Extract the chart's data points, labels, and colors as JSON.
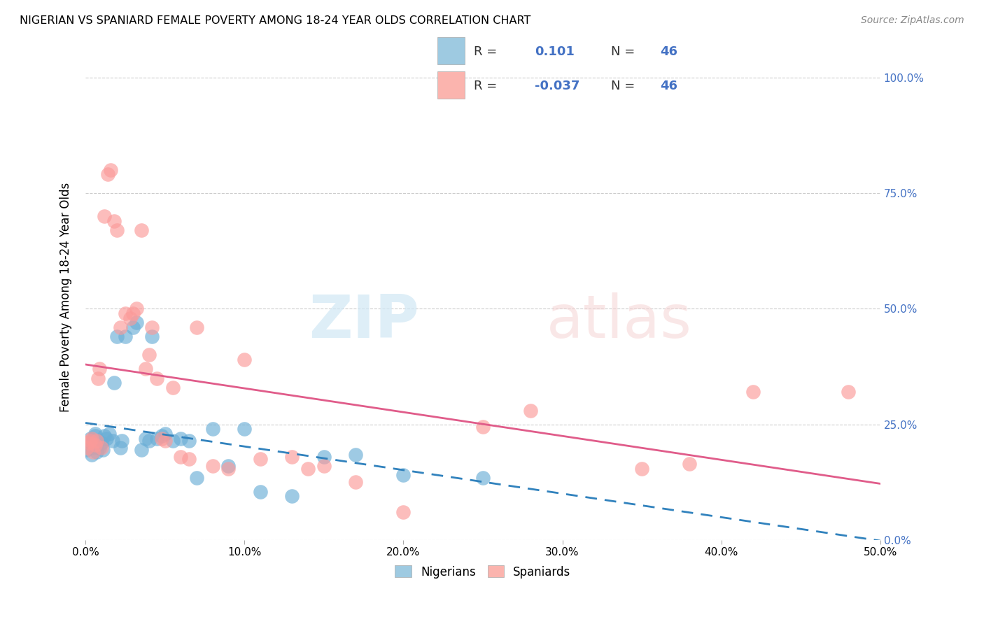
{
  "title": "NIGERIAN VS SPANIARD FEMALE POVERTY AMONG 18-24 YEAR OLDS CORRELATION CHART",
  "source": "Source: ZipAtlas.com",
  "ylabel": "Female Poverty Among 18-24 Year Olds",
  "xlim": [
    0.0,
    0.5
  ],
  "ylim": [
    0.0,
    1.05
  ],
  "xticks": [
    0.0,
    0.1,
    0.2,
    0.3,
    0.4,
    0.5
  ],
  "yticks": [
    0.0,
    0.25,
    0.5,
    0.75,
    1.0
  ],
  "ytick_labels_right": [
    "0.0%",
    "25.0%",
    "50.0%",
    "75.0%",
    "100.0%"
  ],
  "xtick_labels": [
    "0.0%",
    "10.0%",
    "20.0%",
    "30.0%",
    "40.0%",
    "50.0%"
  ],
  "nigerian_color": "#6baed6",
  "spaniard_color": "#fb9a99",
  "nigerian_label": "Nigerians",
  "spaniard_label": "Spaniards",
  "nigerian_R": "0.101",
  "nigerian_N": "46",
  "spaniard_R": "-0.037",
  "spaniard_N": "46",
  "watermark_zip": "ZIP",
  "watermark_atlas": "atlas",
  "nigerian_x": [
    0.001,
    0.002,
    0.003,
    0.003,
    0.004,
    0.005,
    0.005,
    0.006,
    0.006,
    0.007,
    0.007,
    0.008,
    0.009,
    0.01,
    0.011,
    0.012,
    0.013,
    0.015,
    0.017,
    0.018,
    0.02,
    0.022,
    0.023,
    0.025,
    0.03,
    0.032,
    0.035,
    0.038,
    0.04,
    0.042,
    0.045,
    0.048,
    0.05,
    0.055,
    0.06,
    0.065,
    0.07,
    0.08,
    0.09,
    0.1,
    0.11,
    0.13,
    0.15,
    0.17,
    0.2,
    0.25
  ],
  "nigerian_y": [
    0.195,
    0.21,
    0.2,
    0.22,
    0.185,
    0.2,
    0.215,
    0.225,
    0.23,
    0.19,
    0.205,
    0.215,
    0.2,
    0.21,
    0.195,
    0.225,
    0.22,
    0.23,
    0.215,
    0.34,
    0.44,
    0.2,
    0.215,
    0.44,
    0.46,
    0.47,
    0.195,
    0.22,
    0.215,
    0.44,
    0.22,
    0.225,
    0.23,
    0.215,
    0.22,
    0.215,
    0.135,
    0.24,
    0.16,
    0.24,
    0.105,
    0.095,
    0.18,
    0.185,
    0.14,
    0.135
  ],
  "spaniard_x": [
    0.001,
    0.002,
    0.003,
    0.004,
    0.005,
    0.006,
    0.007,
    0.008,
    0.009,
    0.01,
    0.012,
    0.014,
    0.016,
    0.018,
    0.02,
    0.022,
    0.025,
    0.028,
    0.03,
    0.032,
    0.035,
    0.038,
    0.04,
    0.042,
    0.045,
    0.048,
    0.05,
    0.055,
    0.06,
    0.065,
    0.07,
    0.08,
    0.09,
    0.1,
    0.11,
    0.13,
    0.14,
    0.15,
    0.17,
    0.2,
    0.25,
    0.28,
    0.35,
    0.38,
    0.42,
    0.48
  ],
  "spaniard_y": [
    0.2,
    0.21,
    0.215,
    0.22,
    0.19,
    0.205,
    0.215,
    0.35,
    0.37,
    0.2,
    0.7,
    0.79,
    0.8,
    0.69,
    0.67,
    0.46,
    0.49,
    0.48,
    0.49,
    0.5,
    0.67,
    0.37,
    0.4,
    0.46,
    0.35,
    0.22,
    0.215,
    0.33,
    0.18,
    0.175,
    0.46,
    0.16,
    0.155,
    0.39,
    0.175,
    0.18,
    0.155,
    0.16,
    0.125,
    0.06,
    0.245,
    0.28,
    0.155,
    0.165,
    0.32,
    0.32
  ],
  "nigerian_line_color": "#3182bd",
  "spaniard_line_color": "#e05c8a",
  "background_color": "#ffffff",
  "grid_color": "#cccccc",
  "right_tick_color": "#4472c4",
  "legend_color_nigerian": "#9ecae1",
  "legend_color_spaniard": "#fbb4ae"
}
